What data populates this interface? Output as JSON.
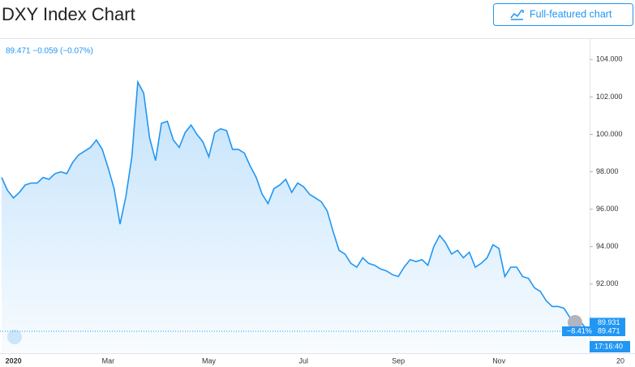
{
  "header": {
    "title": "DXY Index Chart",
    "button": "Full-featured chart"
  },
  "chart_data": {
    "type": "area",
    "subtitle": "89.471 −0.059 (−0.07%)",
    "color": "#2196f3",
    "categories": [
      null,
      null,
      "2020",
      null,
      null,
      null,
      null,
      null,
      null,
      null,
      null,
      null,
      null,
      null,
      null,
      null,
      null,
      null,
      "Mar",
      null,
      null,
      null,
      null,
      null,
      null,
      null,
      null,
      null,
      null,
      null,
      null,
      null,
      null,
      null,
      null,
      "May",
      null,
      null,
      null,
      null,
      null,
      null,
      null,
      null,
      null,
      null,
      null,
      null,
      null,
      null,
      null,
      "Jul",
      null,
      null,
      null,
      null,
      null,
      null,
      null,
      null,
      null,
      null,
      null,
      null,
      null,
      null,
      null,
      "Sep",
      null,
      null,
      null,
      null,
      null,
      null,
      null,
      null,
      null,
      null,
      null,
      null,
      null,
      null,
      null,
      null,
      "Nov",
      null,
      null,
      null,
      null,
      null,
      null,
      null,
      null,
      null,
      null,
      null,
      null,
      null,
      null,
      null
    ],
    "values": [
      97.7,
      97.0,
      96.6,
      96.9,
      97.3,
      97.4,
      97.4,
      97.7,
      97.6,
      97.9,
      98.0,
      97.9,
      98.5,
      98.9,
      99.1,
      99.3,
      99.7,
      99.2,
      98.2,
      97.1,
      95.2,
      96.7,
      98.8,
      102.8,
      102.2,
      99.8,
      98.6,
      100.6,
      100.7,
      99.7,
      99.3,
      100.1,
      100.5,
      100.0,
      99.6,
      98.8,
      100.1,
      100.3,
      100.2,
      99.2,
      99.2,
      99.0,
      98.3,
      97.7,
      96.8,
      96.3,
      97.1,
      97.3,
      97.6,
      96.9,
      97.4,
      97.2,
      96.8,
      96.6,
      96.4,
      95.9,
      94.8,
      93.8,
      93.6,
      93.1,
      92.9,
      93.4,
      93.1,
      93.0,
      92.8,
      92.7,
      92.5,
      92.4,
      92.9,
      93.3,
      93.2,
      93.3,
      93.0,
      94.0,
      94.6,
      94.2,
      93.6,
      93.8,
      93.4,
      93.7,
      92.9,
      93.1,
      93.4,
      94.1,
      93.9,
      92.4,
      92.9,
      92.9,
      92.4,
      92.3,
      91.8,
      91.6,
      91.1,
      90.8,
      90.8,
      90.7,
      90.2,
      90.3,
      89.9,
      89.5
    ],
    "x_end_label": "20",
    "ylim": [
      88.3,
      105.1
    ],
    "yticks": [
      {
        "value": 92,
        "label": "92.000"
      },
      {
        "value": 94,
        "label": "94.000"
      },
      {
        "value": 96,
        "label": "96.000"
      },
      {
        "value": 98,
        "label": "98.000"
      },
      {
        "value": 100,
        "label": "100.000"
      },
      {
        "value": 102,
        "label": "102.000"
      },
      {
        "value": 104,
        "label": "104.000"
      }
    ],
    "price_line": 89.471,
    "price_labels": [
      {
        "value": 89.931,
        "label": "89.931"
      },
      {
        "value": 89.471,
        "label": "89.471"
      }
    ],
    "change_label": "−8.41%",
    "time_label": "17:16:40"
  }
}
